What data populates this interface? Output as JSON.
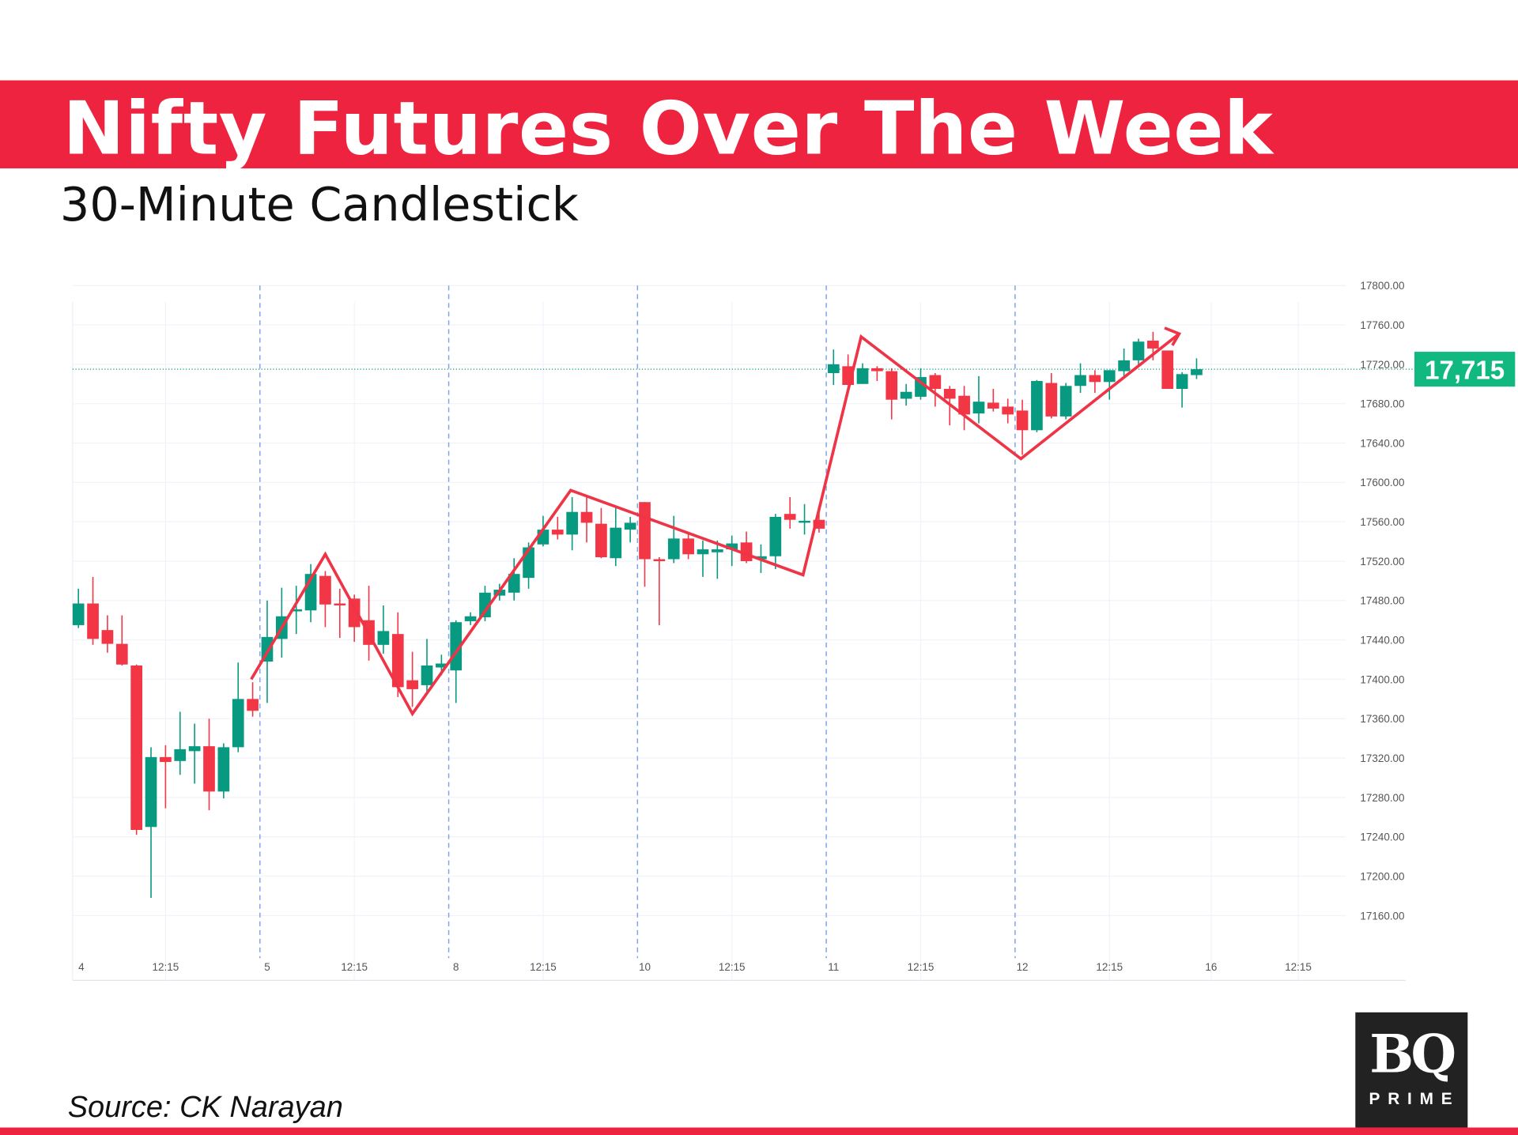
{
  "header": {
    "title": "Nifty Futures Over The Week",
    "subtitle": "30-Minute Candlestick"
  },
  "footer": {
    "source": "Source: CK Narayan",
    "logo_main": "BQ",
    "logo_sub": "PRIME"
  },
  "colors": {
    "band": "#ee2340",
    "up": "#089981",
    "down": "#f23645",
    "trendline": "#ee3446",
    "separator": "#7fa3e6"
  },
  "chart_data": {
    "type": "candlestick",
    "interval": "30 minutes",
    "ylim": [
      17140,
      17810
    ],
    "yticks": [
      17160,
      17200,
      17240,
      17280,
      17320,
      17360,
      17400,
      17440,
      17480,
      17520,
      17560,
      17600,
      17640,
      17680,
      17720,
      17760,
      17800
    ],
    "ytick_labels": [
      "17160.00",
      "17200.00",
      "17240.00",
      "17280.00",
      "17320.00",
      "17360.00",
      "17400.00",
      "17440.00",
      "17480.00",
      "17520.00",
      "17560.00",
      "17600.00",
      "17640.00",
      "17680.00",
      "17720.00",
      "17760.00",
      "17800.00"
    ],
    "xtick_labels": [
      {
        "i": 0,
        "t": "4"
      },
      {
        "i": 6,
        "t": "12:15"
      },
      {
        "i": 13,
        "t": "5"
      },
      {
        "i": 19,
        "t": "12:15"
      },
      {
        "i": 26,
        "t": "8"
      },
      {
        "i": 32,
        "t": "12:15"
      },
      {
        "i": 39,
        "t": "10"
      },
      {
        "i": 45,
        "t": "12:15"
      },
      {
        "i": 52,
        "t": "11"
      },
      {
        "i": 58,
        "t": "12:15"
      },
      {
        "i": 65,
        "t": "12"
      },
      {
        "i": 71,
        "t": "12:15"
      },
      {
        "i": 78,
        "t": "16"
      },
      {
        "i": 84,
        "t": "12:15"
      }
    ],
    "day_separators": [
      13,
      26,
      39,
      52,
      65
    ],
    "grid": true,
    "last_price": 17715,
    "last_price_label": "17,715",
    "candles_ohlc": [
      [
        17455,
        17492,
        17452,
        17477
      ],
      [
        17477,
        17504,
        17435,
        17441
      ],
      [
        17450,
        17465,
        17427,
        17436
      ],
      [
        17436,
        17465,
        17414,
        17415
      ],
      [
        17414,
        17415,
        17242,
        17247
      ],
      [
        17250,
        17331,
        17178,
        17321
      ],
      [
        17321,
        17333,
        17269,
        17316
      ],
      [
        17317,
        17367,
        17303,
        17329
      ],
      [
        17327,
        17355,
        17294,
        17332
      ],
      [
        17332,
        17360,
        17267,
        17286
      ],
      [
        17286,
        17335,
        17279,
        17331
      ],
      [
        17331,
        17417,
        17326,
        17380
      ],
      [
        17380,
        17397,
        17362,
        17368
      ],
      [
        17418,
        17480,
        17376,
        17443
      ],
      [
        17441,
        17493,
        17422,
        17464
      ],
      [
        17469,
        17495,
        17446,
        17471
      ],
      [
        17470,
        17517,
        17458,
        17507
      ],
      [
        17505,
        17510,
        17453,
        17476
      ],
      [
        17477,
        17492,
        17442,
        17476
      ],
      [
        17482,
        17486,
        17438,
        17453
      ],
      [
        17460,
        17495,
        17419,
        17435
      ],
      [
        17435,
        17475,
        17426,
        17449
      ],
      [
        17446,
        17468,
        17382,
        17392
      ],
      [
        17399,
        17428,
        17372,
        17390
      ],
      [
        17394,
        17441,
        17386,
        17414
      ],
      [
        17412,
        17425,
        17404,
        17416
      ],
      [
        17409,
        17460,
        17376,
        17458
      ],
      [
        17459,
        17468,
        17455,
        17464
      ],
      [
        17463,
        17495,
        17459,
        17488
      ],
      [
        17485,
        17497,
        17480,
        17491
      ],
      [
        17488,
        17523,
        17480,
        17507
      ],
      [
        17503,
        17539,
        17492,
        17534
      ],
      [
        17537,
        17566,
        17535,
        17552
      ],
      [
        17552,
        17565,
        17542,
        17547
      ],
      [
        17547,
        17585,
        17531,
        17570
      ],
      [
        17570,
        17585,
        17539,
        17559
      ],
      [
        17558,
        17574,
        17523,
        17524
      ],
      [
        17523,
        17574,
        17515,
        17554
      ],
      [
        17552,
        17565,
        17539,
        17559
      ],
      [
        17580,
        17580,
        17494,
        17522
      ],
      [
        17522,
        17524,
        17455,
        17520
      ],
      [
        17522,
        17566,
        17518,
        17543
      ],
      [
        17543,
        17550,
        17522,
        17527
      ],
      [
        17527,
        17541,
        17504,
        17532
      ],
      [
        17529,
        17541,
        17502,
        17532
      ],
      [
        17532,
        17546,
        17515,
        17538
      ],
      [
        17539,
        17550,
        17518,
        17520
      ],
      [
        17522,
        17537,
        17508,
        17525
      ],
      [
        17525,
        17568,
        17512,
        17565
      ],
      [
        17568,
        17585,
        17553,
        17562
      ],
      [
        17561,
        17578,
        17547,
        17561
      ],
      [
        17562,
        17575,
        17549,
        17553
      ],
      [
        17711,
        17735,
        17699,
        17720
      ],
      [
        17718,
        17730,
        17699,
        17699
      ],
      [
        17700,
        17721,
        17700,
        17716
      ],
      [
        17716,
        17718,
        17703,
        17713
      ],
      [
        17713,
        17716,
        17664,
        17684
      ],
      [
        17685,
        17700,
        17678,
        17692
      ],
      [
        17687,
        17716,
        17684,
        17707
      ],
      [
        17709,
        17711,
        17677,
        17695
      ],
      [
        17695,
        17698,
        17658,
        17685
      ],
      [
        17688,
        17698,
        17653,
        17669
      ],
      [
        17670,
        17708,
        17660,
        17682
      ],
      [
        17681,
        17695,
        17672,
        17675
      ],
      [
        17677,
        17685,
        17660,
        17669
      ],
      [
        17673,
        17684,
        17628,
        17653
      ],
      [
        17653,
        17704,
        17651,
        17703
      ],
      [
        17701,
        17711,
        17665,
        17667
      ],
      [
        17667,
        17701,
        17664,
        17698
      ],
      [
        17698,
        17721,
        17691,
        17709
      ],
      [
        17709,
        17714,
        17691,
        17702
      ],
      [
        17702,
        17714,
        17684,
        17714
      ],
      [
        17713,
        17736,
        17706,
        17724
      ],
      [
        17724,
        17746,
        17719,
        17743
      ],
      [
        17744,
        17753,
        17724,
        17736
      ],
      [
        17734,
        17734,
        17695,
        17695
      ],
      [
        17695,
        17712,
        17676,
        17710
      ],
      [
        17709,
        17726,
        17705,
        17715
      ]
    ],
    "trendline": [
      [
        11.9,
        17400
      ],
      [
        17,
        17527
      ],
      [
        23,
        17365
      ],
      [
        33.9,
        17592
      ],
      [
        49.9,
        17506
      ],
      [
        53.9,
        17748
      ],
      [
        64.9,
        17624
      ],
      [
        75.8,
        17751
      ]
    ]
  }
}
